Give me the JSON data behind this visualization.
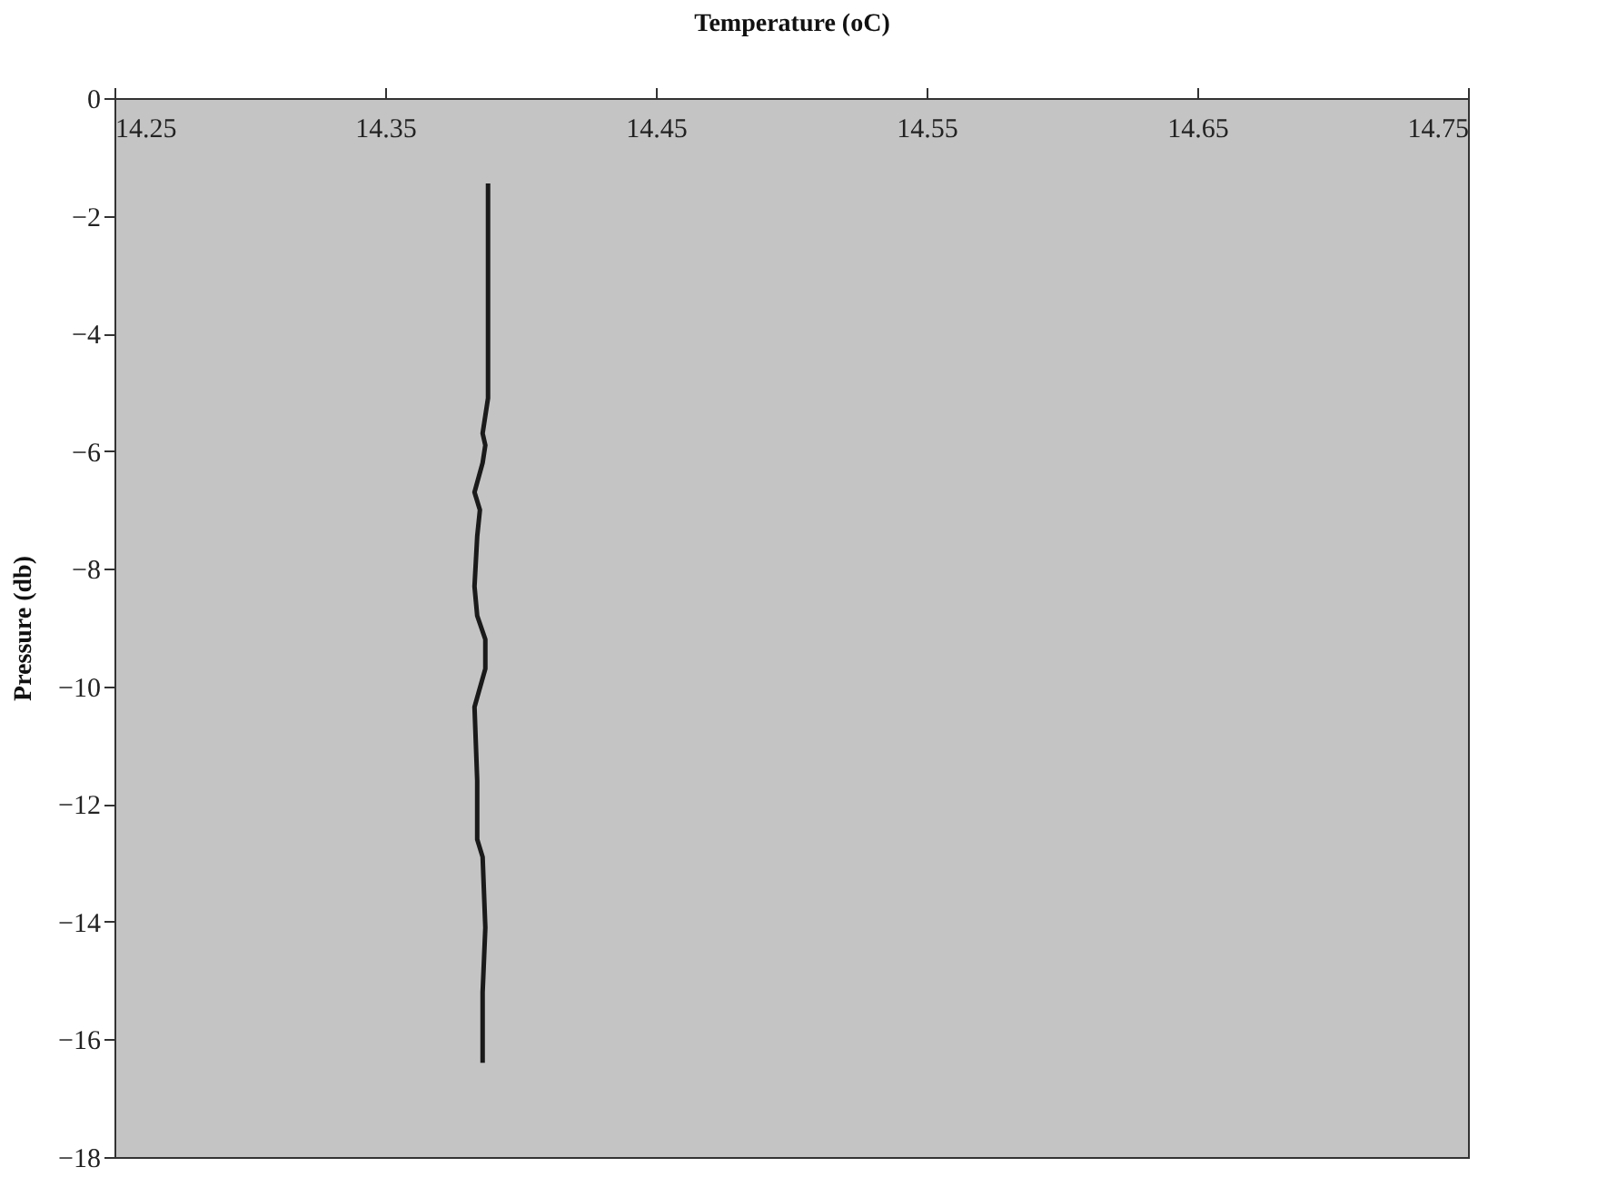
{
  "chart_data": {
    "type": "line",
    "xlabel": "Temperature (oC)",
    "ylabel": "Pressure (db)",
    "xlim": [
      14.25,
      14.75
    ],
    "xticks": [
      14.25,
      14.35,
      14.45,
      14.55,
      14.65,
      14.75
    ],
    "ylim": [
      -18,
      0
    ],
    "yticks": [
      0,
      -2,
      -4,
      -6,
      -8,
      -10,
      -12,
      -14,
      -16,
      -18
    ],
    "grid": false,
    "legend": false,
    "series": [
      {
        "color": "#1a1a1a",
        "x": [
          14.388,
          14.388,
          14.386,
          14.387,
          14.386,
          14.383,
          14.385,
          14.384,
          14.383,
          14.384,
          14.387,
          14.387,
          14.383,
          14.384,
          14.384,
          14.386,
          14.387,
          14.386,
          14.386
        ],
        "values": [
          -1.45,
          -5.1,
          -5.7,
          -5.9,
          -6.2,
          -6.7,
          -7.0,
          -7.45,
          -8.3,
          -8.8,
          -9.2,
          -9.7,
          -10.35,
          -11.6,
          -12.6,
          -12.9,
          -14.1,
          -15.2,
          -16.4
        ]
      }
    ]
  }
}
